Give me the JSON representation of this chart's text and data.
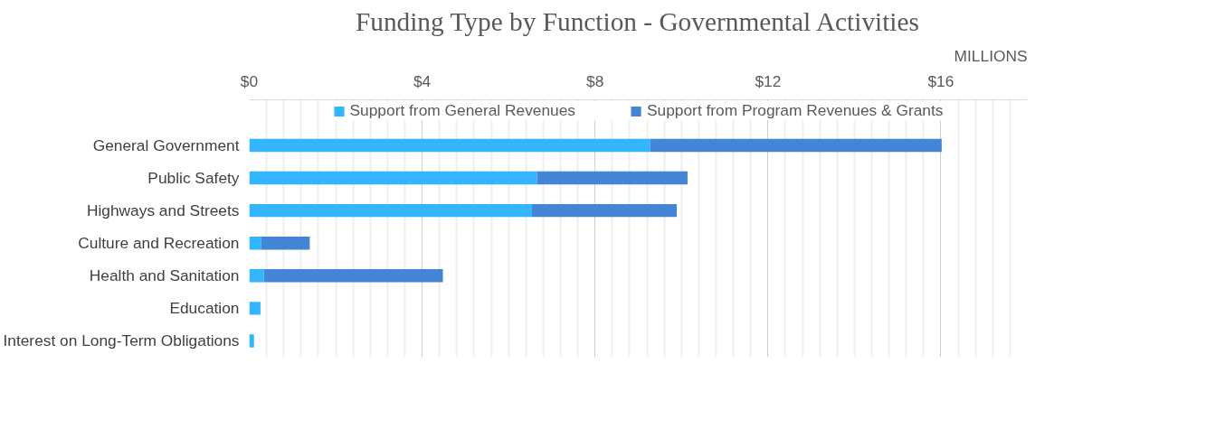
{
  "chart_data": {
    "type": "bar",
    "orientation": "horizontal",
    "stacked": true,
    "title": "Funding Type by Function - Governmental Activities",
    "categories": [
      "General Government",
      "Public Safety",
      "Highways and Streets",
      "Culture and Recreation",
      "Health and Sanitation",
      "Education",
      "Interest on Long-Term Obligations"
    ],
    "series": [
      {
        "name": "Support from General Revenues",
        "color": "#33b5ff",
        "values": [
          9.28,
          6.66,
          6.54,
          0.28,
          0.34,
          0.26,
          0.11
        ]
      },
      {
        "name": "Support from Program Revenues & Grants",
        "color": "#4585d5",
        "values": [
          6.74,
          3.48,
          3.35,
          1.12,
          4.14,
          0,
          0
        ]
      }
    ],
    "xlim": [
      0,
      18
    ],
    "xticks": [
      {
        "value": 0,
        "label": "$0"
      },
      {
        "value": 0.4,
        "label": null
      },
      {
        "value": 0.8,
        "label": null
      },
      {
        "value": 1.2,
        "label": null
      },
      {
        "value": 1.6,
        "label": null
      },
      {
        "value": 2,
        "label": null
      },
      {
        "value": 2.4,
        "label": null
      },
      {
        "value": 2.8,
        "label": null
      },
      {
        "value": 3.2,
        "label": null
      },
      {
        "value": 3.6,
        "label": null
      },
      {
        "value": 4,
        "label": "$4"
      },
      {
        "value": 4.4,
        "label": null
      },
      {
        "value": 4.8,
        "label": null
      },
      {
        "value": 5.2,
        "label": null
      },
      {
        "value": 5.6,
        "label": null
      },
      {
        "value": 6,
        "label": null
      },
      {
        "value": 6.4,
        "label": null
      },
      {
        "value": 6.8,
        "label": null
      },
      {
        "value": 7.2,
        "label": null
      },
      {
        "value": 7.6,
        "label": null
      },
      {
        "value": 8,
        "label": "$8"
      },
      {
        "value": 8.4,
        "label": null
      },
      {
        "value": 8.8,
        "label": null
      },
      {
        "value": 9.2,
        "label": null
      },
      {
        "value": 9.6,
        "label": null
      },
      {
        "value": 10,
        "label": null
      },
      {
        "value": 10.4,
        "label": null
      },
      {
        "value": 10.8,
        "label": null
      },
      {
        "value": 11.2,
        "label": null
      },
      {
        "value": 11.6,
        "label": null
      },
      {
        "value": 12,
        "label": "$12"
      },
      {
        "value": 12.4,
        "label": null
      },
      {
        "value": 12.8,
        "label": null
      },
      {
        "value": 13.2,
        "label": null
      },
      {
        "value": 13.6,
        "label": null
      },
      {
        "value": 14,
        "label": null
      },
      {
        "value": 14.4,
        "label": null
      },
      {
        "value": 14.8,
        "label": null
      },
      {
        "value": 15.2,
        "label": null
      },
      {
        "value": 15.6,
        "label": null
      },
      {
        "value": 16,
        "label": "$16"
      },
      {
        "value": 16.4,
        "label": null
      },
      {
        "value": 16.8,
        "label": null
      },
      {
        "value": 17.2,
        "label": null
      },
      {
        "value": 17.6,
        "label": null
      }
    ],
    "grid": "x",
    "legend": "top",
    "annotations": [
      "MILLIONS"
    ]
  }
}
